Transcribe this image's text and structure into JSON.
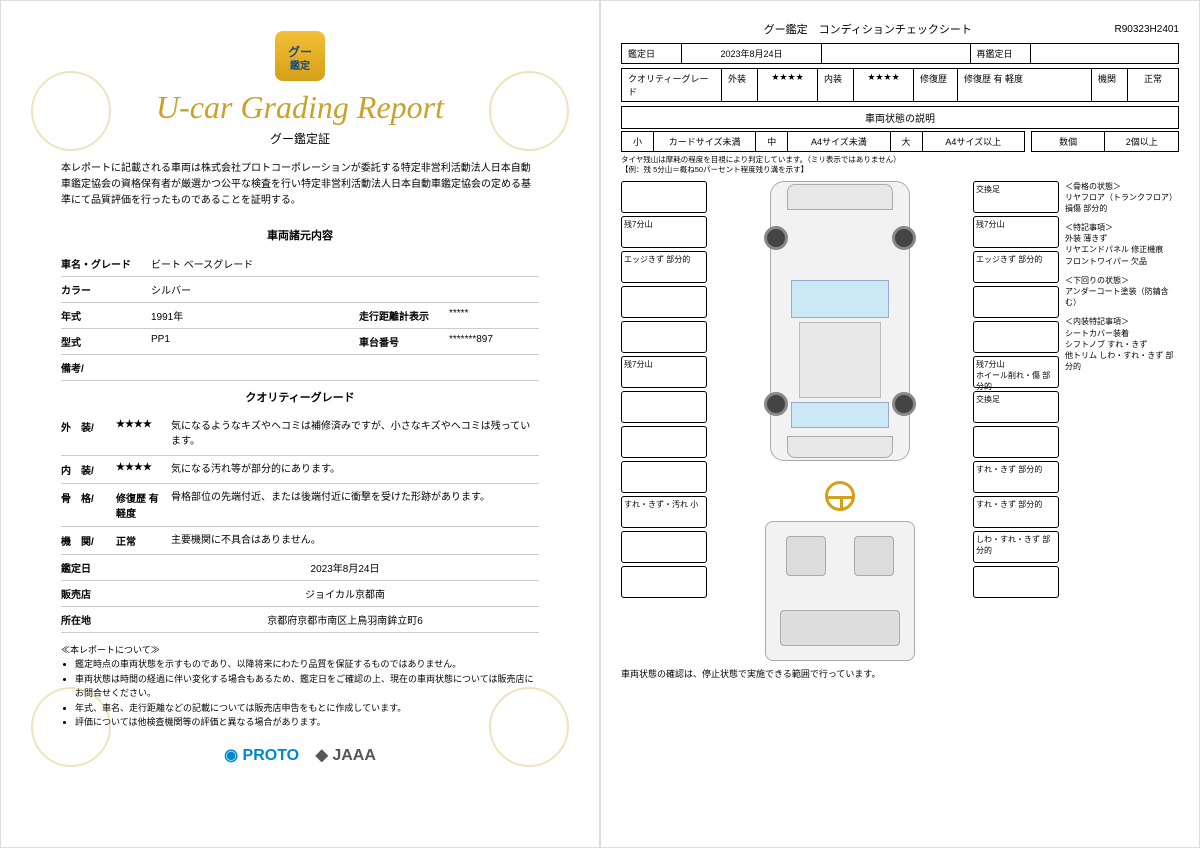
{
  "left": {
    "title": "U-car Grading Report",
    "subtitle": "グー鑑定証",
    "description": "本レポートに記載される車両は株式会社プロトコーポレーションが委託する特定非営利活動法人日本自動車鑑定協会の資格保有者が厳選かつ公平な検査を行い特定非営利活動法人日本自動車鑑定協会の定める基準にて品質評価を行ったものであることを証明する。",
    "vehicleSection": "車両諸元内容",
    "fields": {
      "nameGrade": {
        "label": "車名・グレード",
        "value": "ビート ベースグレード"
      },
      "color": {
        "label": "カラー",
        "value": "シルバー"
      },
      "year": {
        "label": "年式",
        "value": "1991年",
        "label2": "走行距離計表示",
        "value2": "*****"
      },
      "type": {
        "label": "型式",
        "value": "PP1",
        "label2": "車台番号",
        "value2": "*******897"
      },
      "remarks": {
        "label": "備考/",
        "value": ""
      }
    },
    "qualitySection": "クオリティーグレード",
    "grades": {
      "exterior": {
        "label": "外　装/",
        "stars": "★★★★",
        "text": "気になるようなキズやヘコミは補修済みですが、小さなキズやヘコミは残っています。"
      },
      "interior": {
        "label": "内　装/",
        "stars": "★★★★",
        "text": "気になる汚れ等が部分的にあります。"
      },
      "repair": {
        "label": "骨　格/",
        "stars": "修復歴 有 軽度",
        "text": "骨格部位の先端付近、または後端付近に衝撃を受けた形跡があります。"
      },
      "engine": {
        "label": "機　関/",
        "stars": "正常",
        "text": "主要機関に不具合はありません。"
      }
    },
    "appraisal": {
      "label": "鑑定日",
      "value": "2023年8月24日"
    },
    "dealer": {
      "label": "販売店",
      "value": "ジョイカル京都南"
    },
    "address": {
      "label": "所在地",
      "value": "京都府京都市南区上鳥羽南鉾立町6"
    },
    "aboutTitle": "≪本レポートについて≫",
    "notes": [
      "鑑定時点の車両状態を示すものであり、以降将来にわたり品質を保証するものではありません。",
      "車両状態は時間の経過に伴い変化する場合もあるため、鑑定日をご確認の上、現在の車両状態については販売店にお問合せください。",
      "年式、車名、走行距離などの記載については販売店申告をもとに作成しています。",
      "評価については他検査機関等の評価と異なる場合があります。"
    ],
    "logoProto": "PROTO",
    "logoJaaa": "JAAA"
  },
  "right": {
    "headerTitle": "グー鑑定　コンディションチェックシート",
    "code": "R90323H2401",
    "row1": {
      "appraisalLabel": "鑑定日",
      "appraisalValue": "2023年8月24日",
      "reappraisalLabel": "再鑑定日",
      "reappraisalValue": ""
    },
    "row2": {
      "qualityLabel": "クオリティーグレード",
      "exteriorLabel": "外装",
      "exteriorValue": "★★★★",
      "interiorLabel": "内装",
      "interiorValue": "★★★★",
      "repairLabel": "修復歴",
      "repairValue": "修復歴 有 軽度",
      "engineLabel": "機関",
      "engineValue": "正常"
    },
    "explainTitle": "車両状態の説明",
    "sizeLabels": {
      "small": "小",
      "smallDesc": "カードサイズ未満",
      "mid": "中",
      "midDesc": "A4サイズ未満",
      "big": "大",
      "bigDesc": "A4サイズ以上",
      "count": "数個",
      "many": "2個以上"
    },
    "tireNote": "タイヤ残山は摩耗の程度を目視により判定しています。（ミリ表示ではありません）\n【例：残 5分山＝概ね50パーセント程度残り溝を示す】",
    "leftBoxes": [
      "",
      "残7分山",
      "エッジきず 部分的",
      "",
      "",
      "残7分山",
      "",
      "",
      "",
      "すれ・きず・汚れ 小",
      "",
      ""
    ],
    "rightBoxes": [
      "交換足",
      "残7分山",
      "エッジきず 部分的",
      "",
      "",
      "残7分山\nホイール削れ・傷 部分的",
      "交換足",
      "",
      "すれ・きず 部分的",
      "すれ・きず 部分的",
      "しわ・すれ・きず 部分的",
      ""
    ],
    "notes": {
      "frame": {
        "title": "＜骨格の状態＞",
        "text": "リヤフロア（トランクフロア） 損傷 部分的"
      },
      "special": {
        "title": "＜特記事項＞",
        "text": "外装 薄きず\nリヤエンドパネル 修正機痕\nフロントワイパー 欠品"
      },
      "under": {
        "title": "＜下回りの状態＞",
        "text": "アンダーコート塗装（防錆含む）"
      },
      "interiorNote": {
        "title": "＜内装特記事項＞",
        "text": "シートカバー装着\nシフトノブ すれ・きず\n他トリム しわ・すれ・きず 部分的"
      }
    },
    "bottomNote": "車両状態の確認は、停止状態で実施できる範囲で行っています。"
  }
}
